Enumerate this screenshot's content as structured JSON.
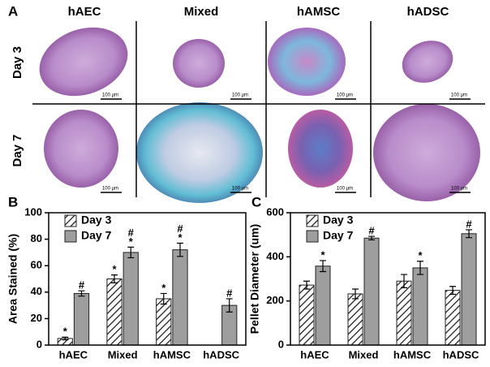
{
  "panel_a": {
    "panel_label": "A",
    "columns": [
      "hAEC",
      "Mixed",
      "hAMSC",
      "hADSC"
    ],
    "rows": [
      "Day 3",
      "Day 7"
    ],
    "scale_bar_label": "100 µm"
  },
  "chart_data": [
    {
      "type": "bar",
      "panel_label": "B",
      "y_label": "Area  Stained (%)",
      "categories": [
        "hAEC",
        "Mixed",
        "hAMSC",
        "hADSC"
      ],
      "ylim": [
        0,
        100
      ],
      "yticks": [
        0,
        20,
        40,
        60,
        80,
        100
      ],
      "legend": "upper left",
      "series": [
        {
          "name": "Day 3",
          "color": "#222222",
          "pattern": "hatch",
          "values": [
            5,
            50,
            35,
            0
          ],
          "errors": [
            1,
            3,
            4,
            0
          ],
          "annotations": [
            [
              "*"
            ],
            [
              "*"
            ],
            [
              "*"
            ],
            null
          ]
        },
        {
          "name": "Day 7",
          "color": "#9e9e9e",
          "values": [
            39,
            70,
            72,
            30
          ],
          "errors": [
            2,
            4,
            5,
            5
          ],
          "annotations": [
            [
              "#"
            ],
            [
              "#",
              "*"
            ],
            [
              "#",
              "*"
            ],
            [
              "#"
            ]
          ]
        }
      ]
    },
    {
      "type": "bar",
      "panel_label": "C",
      "y_label": "Pellet Diameter (um)",
      "categories": [
        "hAEC",
        "Mixed",
        "hAMSC",
        "hADSC"
      ],
      "ylim": [
        0,
        600
      ],
      "yticks": [
        0,
        200,
        400,
        600
      ],
      "legend": "upper left",
      "series": [
        {
          "name": "Day 3",
          "color": "#222222",
          "pattern": "hatch",
          "values": [
            272,
            232,
            290,
            248
          ],
          "errors": [
            18,
            22,
            30,
            18
          ]
        },
        {
          "name": "Day 7",
          "color": "#9e9e9e",
          "values": [
            358,
            485,
            350,
            505
          ],
          "errors": [
            25,
            8,
            30,
            18
          ],
          "annotations": [
            [
              "*"
            ],
            [
              "#"
            ],
            [
              "*"
            ],
            [
              "#"
            ]
          ]
        }
      ]
    }
  ]
}
